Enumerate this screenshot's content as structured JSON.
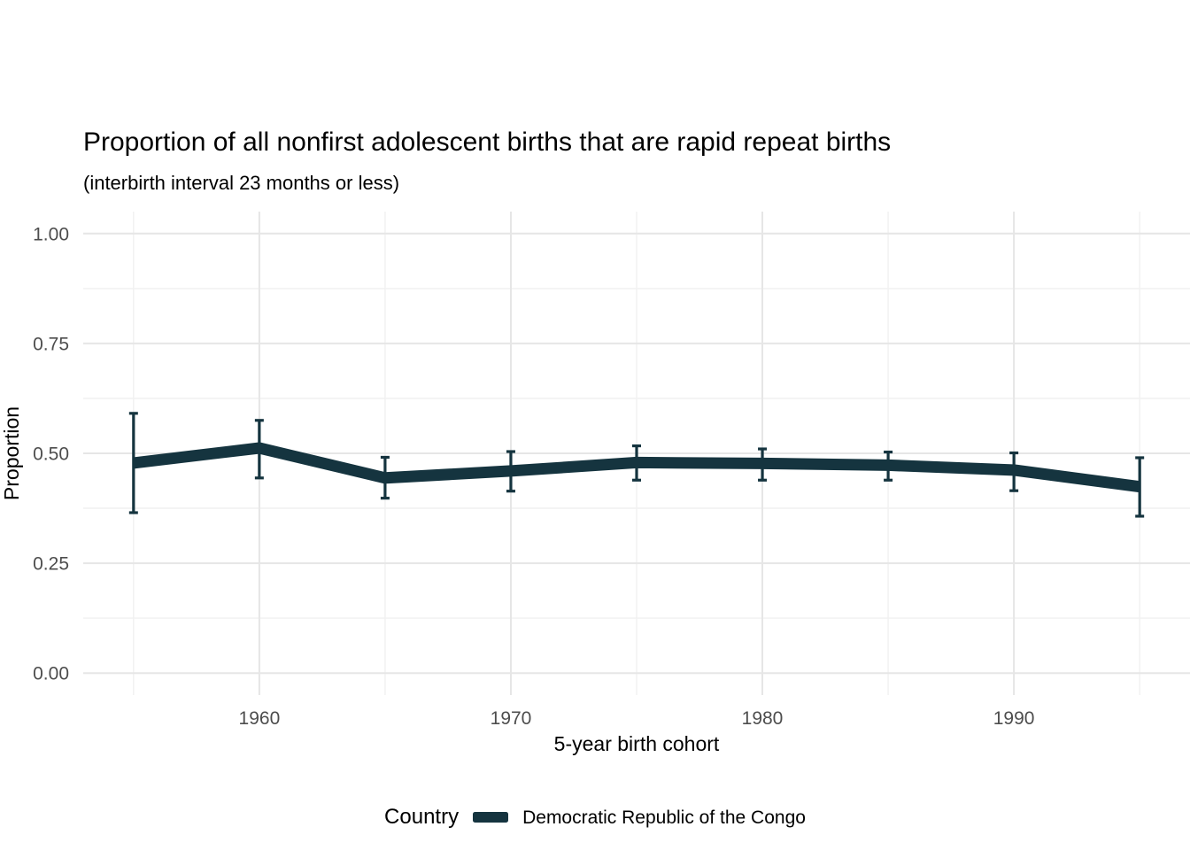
{
  "colors": {
    "line": "#15343f",
    "grid_major": "#e6e6e6",
    "grid_minor": "#f1f1f1",
    "tick_label": "#4d4d4d",
    "text": "#000000",
    "background": "#ffffff"
  },
  "chart_data": {
    "type": "line",
    "title": "Proportion of all nonfirst adolescent births that are rapid repeat births",
    "subtitle": "(interbirth interval 23 months or less)",
    "xlabel": "5-year birth cohort",
    "ylabel": "Proportion",
    "x_domain": [
      1953,
      1997
    ],
    "ylim": [
      -0.05,
      1.05
    ],
    "grid": true,
    "x_tick_values": [
      1960,
      1970,
      1980,
      1990
    ],
    "x_tick_labels": [
      "1960",
      "1970",
      "1980",
      "1990"
    ],
    "x_minor_gridlines": [
      1955,
      1965,
      1975,
      1985,
      1995
    ],
    "y_tick_values": [
      0.0,
      0.25,
      0.5,
      0.75,
      1.0
    ],
    "y_tick_labels": [
      "0.00",
      "0.25",
      "0.50",
      "0.75",
      "1.00"
    ],
    "y_minor_gridlines": [
      0.125,
      0.375,
      0.625,
      0.875
    ],
    "legend_position": "bottom",
    "legend_title": "Country",
    "series": [
      {
        "name": "Democratic Republic of the Congo",
        "color": "#15343f",
        "error_bars": true,
        "x": [
          1955,
          1960,
          1965,
          1970,
          1975,
          1980,
          1985,
          1990,
          1995
        ],
        "y": [
          0.478,
          0.512,
          0.444,
          0.46,
          0.479,
          0.477,
          0.473,
          0.462,
          0.424
        ],
        "y_low": [
          0.365,
          0.444,
          0.398,
          0.414,
          0.439,
          0.439,
          0.439,
          0.415,
          0.357
        ],
        "y_high": [
          0.591,
          0.575,
          0.491,
          0.504,
          0.517,
          0.51,
          0.503,
          0.501,
          0.49
        ]
      }
    ]
  }
}
